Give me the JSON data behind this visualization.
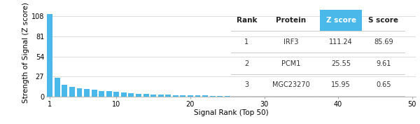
{
  "bar_color": "#4ab8e8",
  "background_color": "#ffffff",
  "ylabel": "Strength of Signal (Z score)",
  "xlabel": "Signal Rank (Top 50)",
  "yticks": [
    0,
    27,
    54,
    81,
    108
  ],
  "xticks": [
    1,
    10,
    20,
    30,
    40,
    50
  ],
  "xlim": [
    0.5,
    50.5
  ],
  "ylim": [
    0,
    118
  ],
  "bar_values": [
    111.24,
    25.55,
    15.95,
    13.2,
    11.5,
    10.2,
    9.0,
    8.0,
    7.2,
    6.5,
    5.5,
    4.8,
    4.2,
    3.7,
    3.3,
    2.9,
    2.5,
    2.2,
    2.0,
    1.8,
    1.6,
    1.5,
    1.4,
    1.3,
    1.2,
    1.1,
    1.05,
    1.0,
    0.95,
    0.9,
    0.85,
    0.8,
    0.78,
    0.75,
    0.72,
    0.7,
    0.68,
    0.65,
    0.63,
    0.61,
    0.59,
    0.57,
    0.55,
    0.53,
    0.51,
    0.49,
    0.47,
    0.45,
    0.43,
    0.41
  ],
  "table_header_labels": [
    "Rank",
    "Protein",
    "Z score",
    "S score"
  ],
  "table_rows": [
    [
      "1",
      "IRF3",
      "111.24",
      "85.69"
    ],
    [
      "2",
      "PCM1",
      "25.55",
      "9.61"
    ],
    [
      "3",
      "MGC23270",
      "15.95",
      "0.65"
    ]
  ],
  "axis_label_fontsize": 7.5,
  "tick_fontsize": 7,
  "table_fontsize": 7,
  "table_header_fontsize": 7.5,
  "figsize": [
    6.0,
    1.77
  ],
  "dpi": 100
}
